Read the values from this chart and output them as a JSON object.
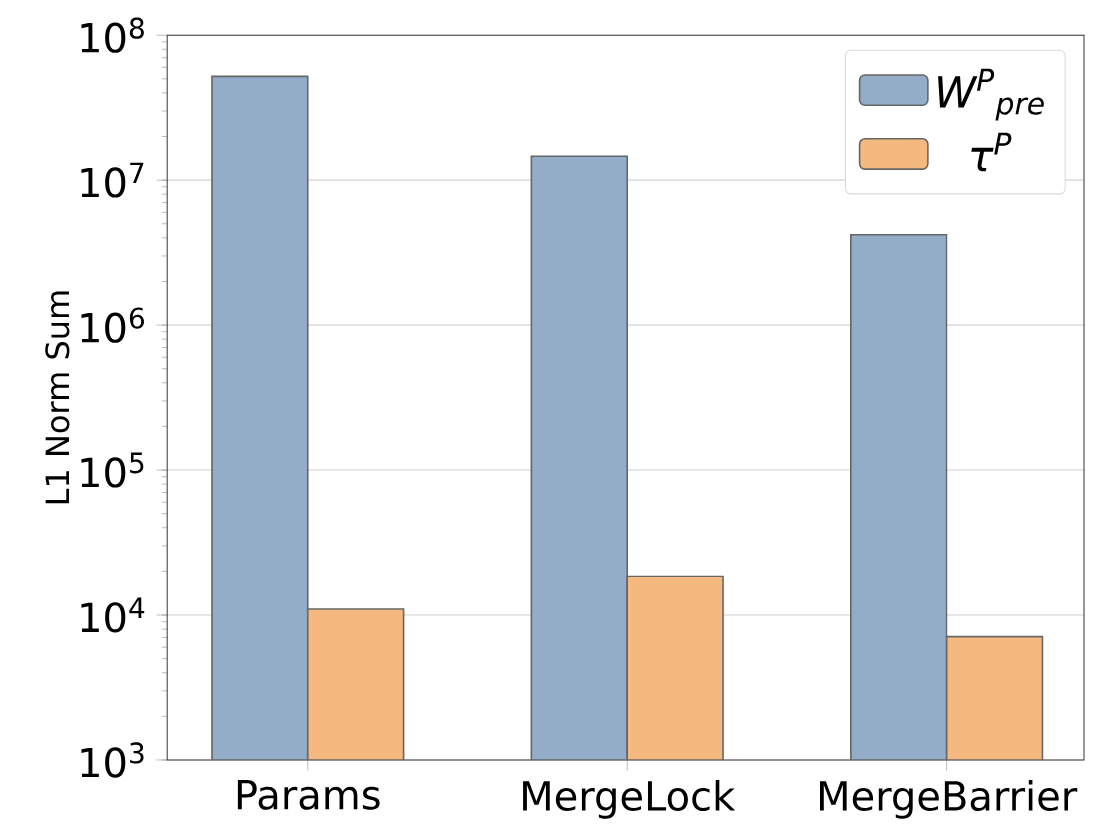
{
  "chart_data": {
    "type": "bar",
    "ylabel": "L1 Norm Sum",
    "categories": [
      "Params",
      "MergeLock",
      "MergeBarrier"
    ],
    "series": [
      {
        "name": "W$^{P}$$_{pre}$",
        "color": "#93acc8",
        "values": [
          52000000,
          14600000,
          4200000
        ]
      },
      {
        "name": "τ$^{P}$",
        "color": "#f5b97f",
        "values": [
          11000,
          18500,
          7100
        ]
      }
    ],
    "log": "y",
    "ylim": [
      1000,
      100000000
    ],
    "yticks": [
      {
        "value": 1000,
        "label": "10$^{3}$"
      },
      {
        "value": 10000,
        "label": "10$^{4}$"
      },
      {
        "value": 100000,
        "label": "10$^{5}$"
      },
      {
        "value": 1000000,
        "label": "10$^{6}$"
      },
      {
        "value": 10000000,
        "label": "10$^{7}$"
      },
      {
        "value": 100000000,
        "label": "10$^{8}$"
      }
    ],
    "grid": "y",
    "legend": "top right"
  }
}
